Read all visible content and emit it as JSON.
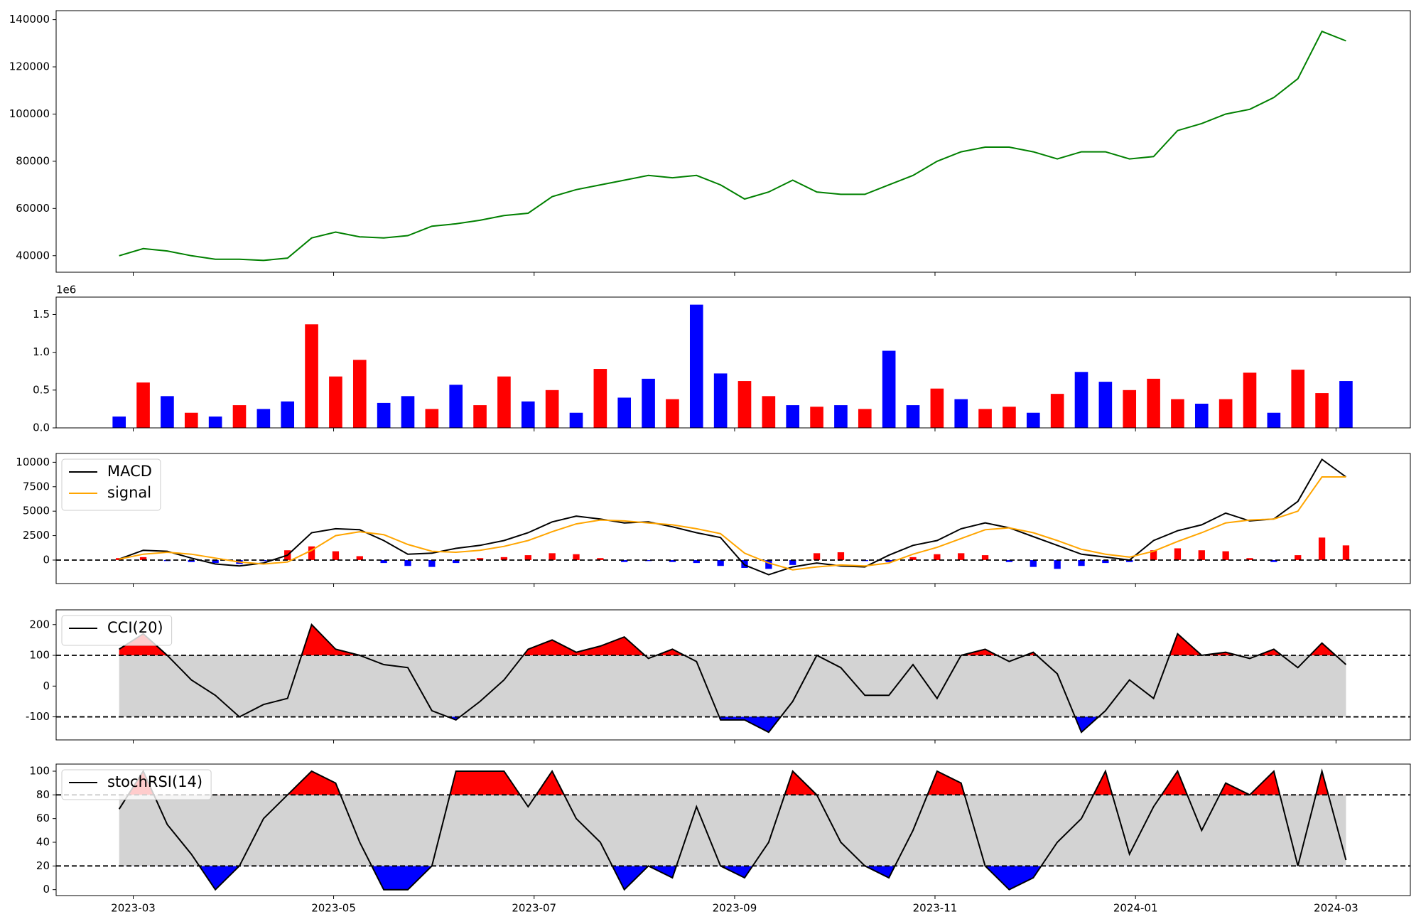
{
  "chart_data": [
    {
      "type": "line",
      "x": [
        2023.155,
        2023.175,
        2023.195,
        2023.215,
        2023.235,
        2023.255,
        2023.275,
        2023.295,
        2023.315,
        2023.335,
        2023.355,
        2023.375,
        2023.395,
        2023.415,
        2023.435,
        2023.455,
        2023.475,
        2023.495,
        2023.515,
        2023.535,
        2023.555,
        2023.575,
        2023.595,
        2023.615,
        2023.635,
        2023.655,
        2023.675,
        2023.695,
        2023.715,
        2023.735,
        2023.755,
        2023.775,
        2023.795,
        2023.815,
        2023.835,
        2023.855,
        2023.875,
        2023.895,
        2023.915,
        2023.935,
        2023.955,
        2023.975,
        2023.995,
        2024.015,
        2024.035,
        2024.055,
        2024.075,
        2024.095,
        2024.115,
        2024.135,
        2024.155,
        2024.175
      ],
      "xlim": [
        2023.1026,
        2024.2285
      ],
      "series": [
        {
          "color": "#008000",
          "values": [
            40000,
            43000,
            42000,
            40000,
            38500,
            38500,
            38000,
            39000,
            47500,
            50000,
            48000,
            47500,
            48500,
            52500,
            53500,
            55000,
            57000,
            58000,
            65000,
            68000,
            70000,
            72000,
            74000,
            73000,
            74000,
            70000,
            64000,
            67000,
            72000,
            67000,
            66000,
            66000,
            70000,
            74000,
            80000,
            84000,
            86000,
            86000,
            84000,
            81000,
            84000,
            84000,
            81000,
            82000,
            93000,
            96000,
            100000,
            102000,
            107000,
            115000,
            135000,
            131000
          ]
        }
      ],
      "ylim": [
        33000,
        143800
      ],
      "yticks": [
        40000,
        60000,
        80000,
        100000,
        120000,
        140000
      ]
    },
    {
      "type": "bar",
      "x": [
        2023.155,
        2023.175,
        2023.195,
        2023.215,
        2023.235,
        2023.255,
        2023.275,
        2023.295,
        2023.315,
        2023.335,
        2023.355,
        2023.375,
        2023.395,
        2023.415,
        2023.435,
        2023.455,
        2023.475,
        2023.495,
        2023.515,
        2023.535,
        2023.555,
        2023.575,
        2023.595,
        2023.615,
        2023.635,
        2023.655,
        2023.675,
        2023.695,
        2023.715,
        2023.735,
        2023.755,
        2023.775,
        2023.795,
        2023.815,
        2023.835,
        2023.855,
        2023.875,
        2023.895,
        2023.915,
        2023.935,
        2023.955,
        2023.975,
        2023.995,
        2024.015,
        2024.035,
        2024.055,
        2024.075,
        2024.095,
        2024.115,
        2024.135,
        2024.155,
        2024.175
      ],
      "xlim": [
        2023.1026,
        2024.2285
      ],
      "values": [
        0.15,
        0.6,
        0.42,
        0.2,
        0.15,
        0.3,
        0.25,
        0.35,
        1.37,
        0.68,
        0.9,
        0.33,
        0.42,
        0.25,
        0.57,
        0.3,
        0.68,
        0.35,
        0.5,
        0.2,
        0.78,
        0.4,
        0.65,
        0.38,
        1.63,
        0.72,
        0.62,
        0.42,
        0.3,
        0.28,
        0.3,
        0.25,
        1.02,
        0.3,
        0.52,
        0.38,
        0.25,
        0.28,
        0.2,
        0.45,
        0.74,
        0.61,
        0.5,
        0.65,
        0.38,
        0.32,
        0.38,
        0.73,
        0.2,
        0.77,
        0.46,
        0.62
      ],
      "colors": [
        "#0000ff",
        "#ff0000",
        "#0000ff",
        "#ff0000",
        "#0000ff",
        "#ff0000",
        "#0000ff",
        "#0000ff",
        "#ff0000",
        "#ff0000",
        "#ff0000",
        "#0000ff",
        "#0000ff",
        "#ff0000",
        "#0000ff",
        "#ff0000",
        "#ff0000",
        "#0000ff",
        "#ff0000",
        "#0000ff",
        "#ff0000",
        "#0000ff",
        "#0000ff",
        "#ff0000",
        "#0000ff",
        "#0000ff",
        "#ff0000",
        "#ff0000",
        "#0000ff",
        "#ff0000",
        "#0000ff",
        "#ff0000",
        "#0000ff",
        "#0000ff",
        "#ff0000",
        "#0000ff",
        "#ff0000",
        "#ff0000",
        "#0000ff",
        "#ff0000",
        "#0000ff",
        "#0000ff",
        "#ff0000",
        "#ff0000",
        "#ff0000",
        "#0000ff",
        "#ff0000",
        "#ff0000",
        "#0000ff",
        "#ff0000",
        "#ff0000",
        "#0000ff"
      ],
      "offset_label": "1e6",
      "ylim": [
        0,
        1.73
      ],
      "yticks": [
        {
          "value": 0,
          "label": "0.0"
        },
        0.5,
        {
          "value": 1,
          "label": "1.0"
        },
        1.5
      ]
    },
    {
      "type": "combo",
      "x": [
        2023.155,
        2023.175,
        2023.195,
        2023.215,
        2023.235,
        2023.255,
        2023.275,
        2023.295,
        2023.315,
        2023.335,
        2023.355,
        2023.375,
        2023.395,
        2023.415,
        2023.435,
        2023.455,
        2023.475,
        2023.495,
        2023.515,
        2023.535,
        2023.555,
        2023.575,
        2023.595,
        2023.615,
        2023.635,
        2023.655,
        2023.675,
        2023.695,
        2023.715,
        2023.735,
        2023.755,
        2023.775,
        2023.795,
        2023.815,
        2023.835,
        2023.855,
        2023.875,
        2023.895,
        2023.915,
        2023.935,
        2023.955,
        2023.975,
        2023.995,
        2024.015,
        2024.035,
        2024.055,
        2024.075,
        2024.095,
        2024.115,
        2024.135,
        2024.155,
        2024.175
      ],
      "xlim": [
        2023.1026,
        2024.2285
      ],
      "series": [
        {
          "name": "MACD",
          "color": "#000000",
          "values": [
            100,
            1000,
            900,
            200,
            -400,
            -600,
            -300,
            500,
            2800,
            3200,
            3100,
            2000,
            600,
            700,
            1200,
            1500,
            2000,
            2800,
            3900,
            4500,
            4200,
            3800,
            3900,
            3400,
            2800,
            2300,
            -500,
            -1500,
            -700,
            -300,
            -600,
            -700,
            500,
            1500,
            2000,
            3200,
            3800,
            3300,
            2400,
            1500,
            600,
            300,
            0,
            2000,
            3000,
            3600,
            4800,
            4000,
            4200,
            6000,
            10300,
            8500
          ]
        },
        {
          "name": "signal",
          "color": "#ffa500",
          "values": [
            100,
            600,
            800,
            600,
            200,
            -200,
            -400,
            -200,
            1000,
            2500,
            2900,
            2600,
            1600,
            900,
            800,
            1000,
            1400,
            2000,
            2900,
            3700,
            4100,
            4000,
            3800,
            3600,
            3200,
            2700,
            700,
            -300,
            -1000,
            -700,
            -500,
            -600,
            -300,
            600,
            1300,
            2200,
            3100,
            3300,
            2800,
            2000,
            1100,
            600,
            300,
            900,
            1900,
            2800,
            3800,
            4100,
            4200,
            5000,
            8500,
            8500
          ]
        }
      ],
      "histogram": [
        200,
        300,
        -100,
        -200,
        -300,
        -400,
        -100,
        1000,
        1400,
        900,
        400,
        -300,
        -600,
        -700,
        -300,
        200,
        300,
        500,
        700,
        600,
        200,
        -200,
        -100,
        -200,
        -300,
        -600,
        -800,
        -900,
        -500,
        700,
        800,
        -100,
        -200,
        300,
        600,
        700,
        500,
        -200,
        -700,
        -900,
        -600,
        -300,
        -200,
        1000,
        1200,
        1000,
        900,
        200,
        -200,
        500,
        2300,
        1500
      ],
      "histogram_colors": {
        "positive": "#ff0000",
        "negative": "#0000ff"
      },
      "hlines": [
        0
      ],
      "legend": "upper left",
      "ylim": [
        -2400,
        10900
      ],
      "yticks": [
        0,
        2500,
        5000,
        7500,
        10000
      ]
    },
    {
      "type": "band",
      "x": [
        2023.155,
        2023.175,
        2023.195,
        2023.215,
        2023.235,
        2023.255,
        2023.275,
        2023.295,
        2023.315,
        2023.335,
        2023.355,
        2023.375,
        2023.395,
        2023.415,
        2023.435,
        2023.455,
        2023.475,
        2023.495,
        2023.515,
        2023.535,
        2023.555,
        2023.575,
        2023.595,
        2023.615,
        2023.635,
        2023.655,
        2023.675,
        2023.695,
        2023.715,
        2023.735,
        2023.755,
        2023.775,
        2023.795,
        2023.815,
        2023.835,
        2023.855,
        2023.875,
        2023.895,
        2023.915,
        2023.935,
        2023.955,
        2023.975,
        2023.995,
        2024.015,
        2024.035,
        2024.055,
        2024.075,
        2024.095,
        2024.115,
        2024.135,
        2024.155,
        2024.175
      ],
      "xlim": [
        2023.1026,
        2024.2285
      ],
      "series": [
        {
          "name": "CCI(20)",
          "color": "#000000",
          "values": [
            120,
            170,
            100,
            20,
            -30,
            -100,
            -60,
            -40,
            200,
            120,
            100,
            70,
            60,
            -80,
            -110,
            -50,
            20,
            120,
            150,
            110,
            130,
            160,
            90,
            120,
            80,
            -110,
            -110,
            -150,
            -50,
            100,
            60,
            -30,
            -30,
            70,
            -40,
            100,
            120,
            80,
            110,
            40,
            -150,
            -80,
            20,
            -40,
            170,
            100,
            110,
            90,
            120,
            60,
            140,
            70
          ]
        }
      ],
      "bands": {
        "upper": 100,
        "lower": -100
      },
      "fill_colors": {
        "upper": "#ff0000",
        "lower": "#0000ff",
        "band": "#d3d3d3"
      },
      "legend": "upper left",
      "ylim": [
        -175,
        248
      ],
      "yticks": [
        -100,
        0,
        100,
        200
      ]
    },
    {
      "type": "band",
      "x": [
        2023.155,
        2023.175,
        2023.195,
        2023.215,
        2023.235,
        2023.255,
        2023.275,
        2023.295,
        2023.315,
        2023.335,
        2023.355,
        2023.375,
        2023.395,
        2023.415,
        2023.435,
        2023.455,
        2023.475,
        2023.495,
        2023.515,
        2023.535,
        2023.555,
        2023.575,
        2023.595,
        2023.615,
        2023.635,
        2023.655,
        2023.675,
        2023.695,
        2023.715,
        2023.735,
        2023.755,
        2023.775,
        2023.795,
        2023.815,
        2023.835,
        2023.855,
        2023.875,
        2023.895,
        2023.915,
        2023.935,
        2023.955,
        2023.975,
        2023.995,
        2024.015,
        2024.035,
        2024.055,
        2024.075,
        2024.095,
        2024.115,
        2024.135,
        2024.155,
        2024.175
      ],
      "xlim": [
        2023.1026,
        2024.2285
      ],
      "series": [
        {
          "name": "stochRSI(14)",
          "color": "#000000",
          "values": [
            68,
            100,
            55,
            30,
            0,
            20,
            60,
            80,
            100,
            90,
            40,
            0,
            0,
            20,
            100,
            100,
            100,
            70,
            100,
            60,
            40,
            0,
            20,
            10,
            70,
            20,
            10,
            40,
            100,
            80,
            40,
            20,
            10,
            50,
            100,
            90,
            20,
            0,
            10,
            40,
            60,
            100,
            30,
            70,
            100,
            50,
            90,
            80,
            100,
            20,
            100,
            25
          ]
        }
      ],
      "bands": {
        "upper": 80,
        "lower": 20
      },
      "fill_colors": {
        "upper": "#ff0000",
        "lower": "#0000ff",
        "band": "#d3d3d3"
      },
      "legend": "upper left",
      "ylim": [
        -5,
        106
      ],
      "yticks": [
        0,
        20,
        40,
        60,
        80,
        100
      ],
      "xticks": [
        {
          "value": 2023.1667,
          "label": "2023-03"
        },
        {
          "value": 2023.3333,
          "label": "2023-05"
        },
        {
          "value": 2023.5,
          "label": "2023-07"
        },
        {
          "value": 2023.6667,
          "label": "2023-09"
        },
        {
          "value": 2023.8333,
          "label": "2023-11"
        },
        {
          "value": 2024.0,
          "label": "2024-01"
        },
        {
          "value": 2024.1667,
          "label": "2024-03"
        }
      ]
    }
  ]
}
